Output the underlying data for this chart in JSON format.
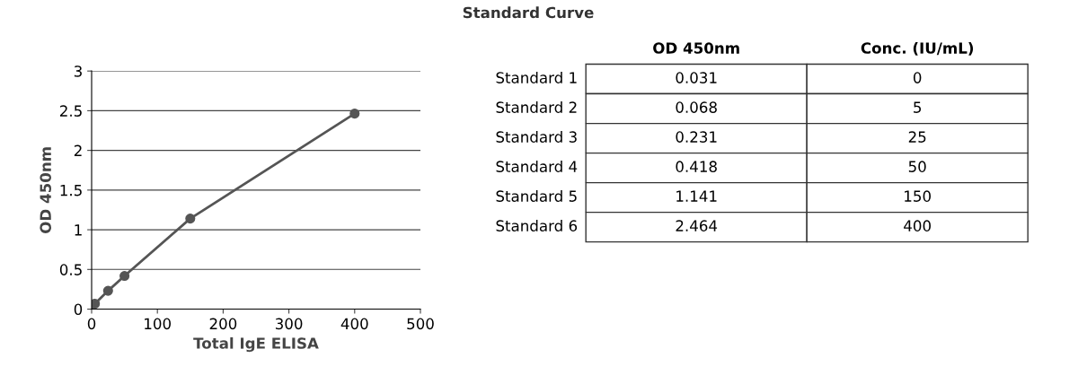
{
  "chart_data": [
    {
      "type": "line",
      "xlabel": "Total IgE ELISA",
      "ylabel": "OD 450nm",
      "x": [
        0,
        5,
        25,
        50,
        150,
        400
      ],
      "series": [
        {
          "color": "#555555",
          "values": [
            0.031,
            0.068,
            0.231,
            0.418,
            1.141,
            2.464
          ]
        }
      ],
      "marker": "circle",
      "line_style": "solid",
      "xlim": [
        0,
        500
      ],
      "xticks": [
        0,
        100,
        200,
        300,
        400,
        500
      ],
      "ylim": [
        0,
        3
      ],
      "yticks": [
        0,
        0.5,
        1,
        1.5,
        2,
        2.5,
        3
      ],
      "grid": "y"
    },
    {
      "type": "other",
      "title": "Standard Curve",
      "categories": [
        "Standard 1",
        "Standard 2",
        "Standard 3",
        "Standard 4",
        "Standard 5",
        "Standard 6"
      ],
      "series": [
        {
          "name": "OD 450nm",
          "values": [
            0.031,
            0.068,
            0.231,
            0.418,
            1.141,
            2.464
          ]
        },
        {
          "name": "Conc. (IU/mL)",
          "values": [
            0,
            5,
            25,
            50,
            150,
            400
          ]
        }
      ],
      "data_labels": true
    }
  ]
}
